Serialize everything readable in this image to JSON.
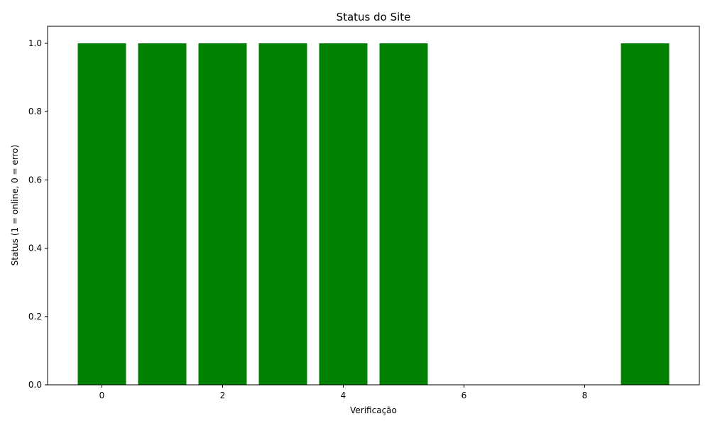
{
  "chart_data": {
    "type": "bar",
    "title": "Status do Site",
    "xlabel": "Verificação",
    "ylabel": "Status (1 = online, 0 = erro)",
    "x": [
      0,
      1,
      2,
      3,
      4,
      5,
      6,
      7,
      8,
      9
    ],
    "values": [
      1,
      1,
      1,
      1,
      1,
      1,
      0,
      0,
      0,
      1
    ],
    "bar_color": "#008000",
    "xlim": [
      -0.9,
      9.9
    ],
    "ylim": [
      0,
      1.05
    ],
    "xticks": [
      0,
      2,
      4,
      6,
      8
    ],
    "xtick_labels": [
      "0",
      "2",
      "4",
      "6",
      "8"
    ],
    "yticks": [
      0.0,
      0.2,
      0.4,
      0.6,
      0.8,
      1.0
    ],
    "ytick_labels": [
      "0.0",
      "0.2",
      "0.4",
      "0.6",
      "0.8",
      "1.0"
    ],
    "grid": false,
    "legend": "none"
  }
}
